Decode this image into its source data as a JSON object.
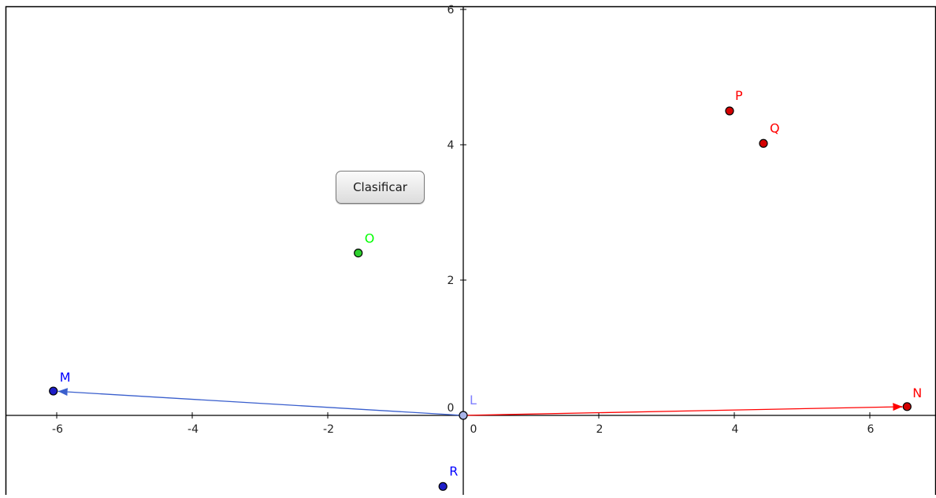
{
  "button": {
    "label": "Clasificar"
  },
  "axes": {
    "x_ticks": [
      {
        "value": -6,
        "label": "-6"
      },
      {
        "value": -4,
        "label": "-4"
      },
      {
        "value": -2,
        "label": "-2"
      },
      {
        "value": 0,
        "label": "0"
      },
      {
        "value": 2,
        "label": "2"
      },
      {
        "value": 4,
        "label": "4"
      },
      {
        "value": 6,
        "label": "6"
      }
    ],
    "y_ticks": [
      {
        "value": 0,
        "label": "0"
      },
      {
        "value": 2,
        "label": "2"
      },
      {
        "value": 4,
        "label": "4"
      },
      {
        "value": 6,
        "label": "6"
      }
    ],
    "xlim": [
      -6.8,
      6.9
    ],
    "ylim": [
      -1.2,
      6.1
    ]
  },
  "colors": {
    "axis": "#000000",
    "red": "#ff0000",
    "blue": "#0000ff",
    "vector_blue": "#3a5fcd",
    "green": "#00ff00",
    "origin_fill": "#a9b4e8",
    "origin_label": "#8080ff",
    "point_red": "#d40000",
    "point_blue": "#1e1ec8",
    "point_green": "#2ed12e"
  },
  "points": [
    {
      "id": "L",
      "label": "L",
      "x": 0,
      "y": 0,
      "fill": "#a9b4e8",
      "label_color": "#8080ff"
    },
    {
      "id": "M",
      "label": "M",
      "x": -6.05,
      "y": 0.36,
      "fill": "#1e1ec8",
      "label_color": "#0000ff"
    },
    {
      "id": "N",
      "label": "N",
      "x": 6.55,
      "y": 0.13,
      "fill": "#d40000",
      "label_color": "#ff0000"
    },
    {
      "id": "O",
      "label": "O",
      "x": -1.55,
      "y": 2.4,
      "fill": "#2ed12e",
      "label_color": "#00ff00"
    },
    {
      "id": "P",
      "label": "P",
      "x": 3.93,
      "y": 4.5,
      "fill": "#d40000",
      "label_color": "#ff0000"
    },
    {
      "id": "Q",
      "label": "Q",
      "x": 4.43,
      "y": 4.02,
      "fill": "#d40000",
      "label_color": "#ff0000"
    },
    {
      "id": "R",
      "label": "R",
      "x": -0.3,
      "y": -1.05,
      "fill": "#1e1ec8",
      "label_color": "#0000ff"
    }
  ],
  "vectors": [
    {
      "id": "LM",
      "from": "L",
      "to": "M",
      "color": "#3a5fcd"
    },
    {
      "id": "LN",
      "from": "L",
      "to": "N",
      "color": "#ff0000"
    }
  ]
}
